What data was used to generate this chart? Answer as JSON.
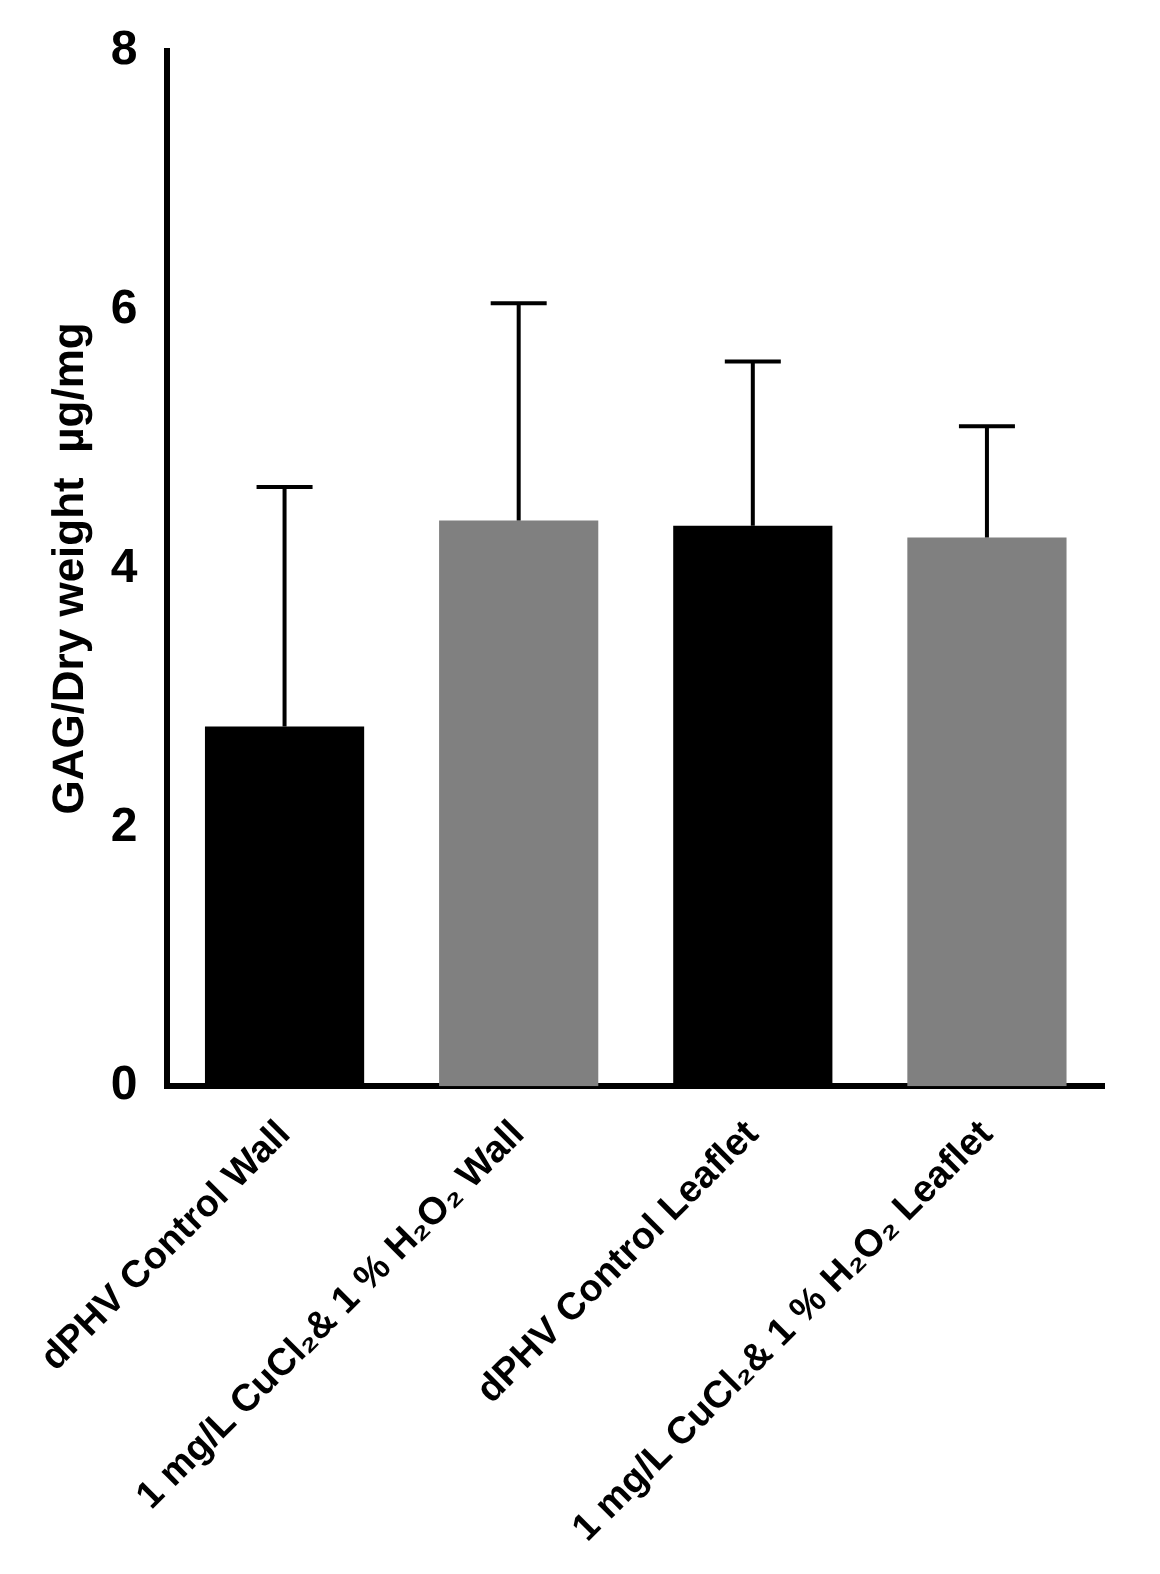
{
  "chart_data": {
    "type": "bar",
    "ylabel": "GAG/Dry weight  µg/mg",
    "categories": [
      "dPHV Control Wall",
      "1 mg/L CuCl₂& 1 % H₂O₂ Wall",
      "dPHV Control Leaflet",
      "1 mg/L CuCl₂& 1 % H₂O₂ Leaflet"
    ],
    "values": [
      2.78,
      4.37,
      4.33,
      4.24
    ],
    "colors": [
      "#000000",
      "#808080",
      "#000000",
      "#808080"
    ],
    "errors": [
      [
        2.78,
        4.63
      ],
      [
        4.37,
        6.05
      ],
      [
        4.33,
        5.6
      ],
      [
        4.24,
        5.1
      ]
    ],
    "ylim": [
      0,
      8
    ],
    "yticks": [
      0,
      2,
      4,
      6,
      8
    ],
    "grid": false,
    "legend": false
  }
}
